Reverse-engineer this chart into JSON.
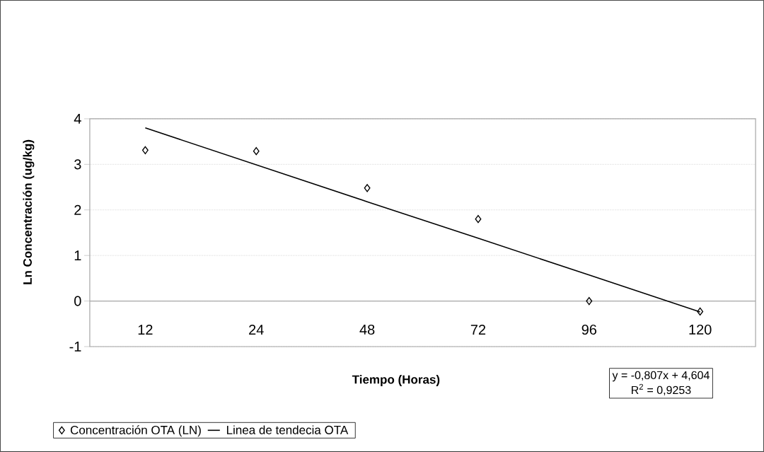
{
  "chart_data": {
    "type": "scatter",
    "xlabel": "Tiempo (Horas)",
    "ylabel": "Ln Concentración (ug/kg)",
    "categories": [
      "12",
      "24",
      "48",
      "72",
      "96",
      "120"
    ],
    "series": [
      {
        "name": "Concentración OTA (LN)",
        "color": "#000000",
        "marker": "diamond",
        "values": [
          3.31,
          3.29,
          2.48,
          1.8,
          0,
          -0.23
        ]
      },
      {
        "name": "Linea de tendecia OTA",
        "type": "line",
        "color": "#000000",
        "marker": "none",
        "line_style": "solid",
        "values": [
          3.8,
          2.99,
          2.18,
          1.38,
          0.57,
          -0.24
        ]
      }
    ],
    "ylim": [
      -1,
      4
    ],
    "yticks": [
      -1,
      0,
      1,
      2,
      3,
      4
    ],
    "grid": "y",
    "legend": "bottom left",
    "annotations": [
      "y = -0,807x + 4,604",
      "R$^{2}$ = 0,9253"
    ]
  }
}
